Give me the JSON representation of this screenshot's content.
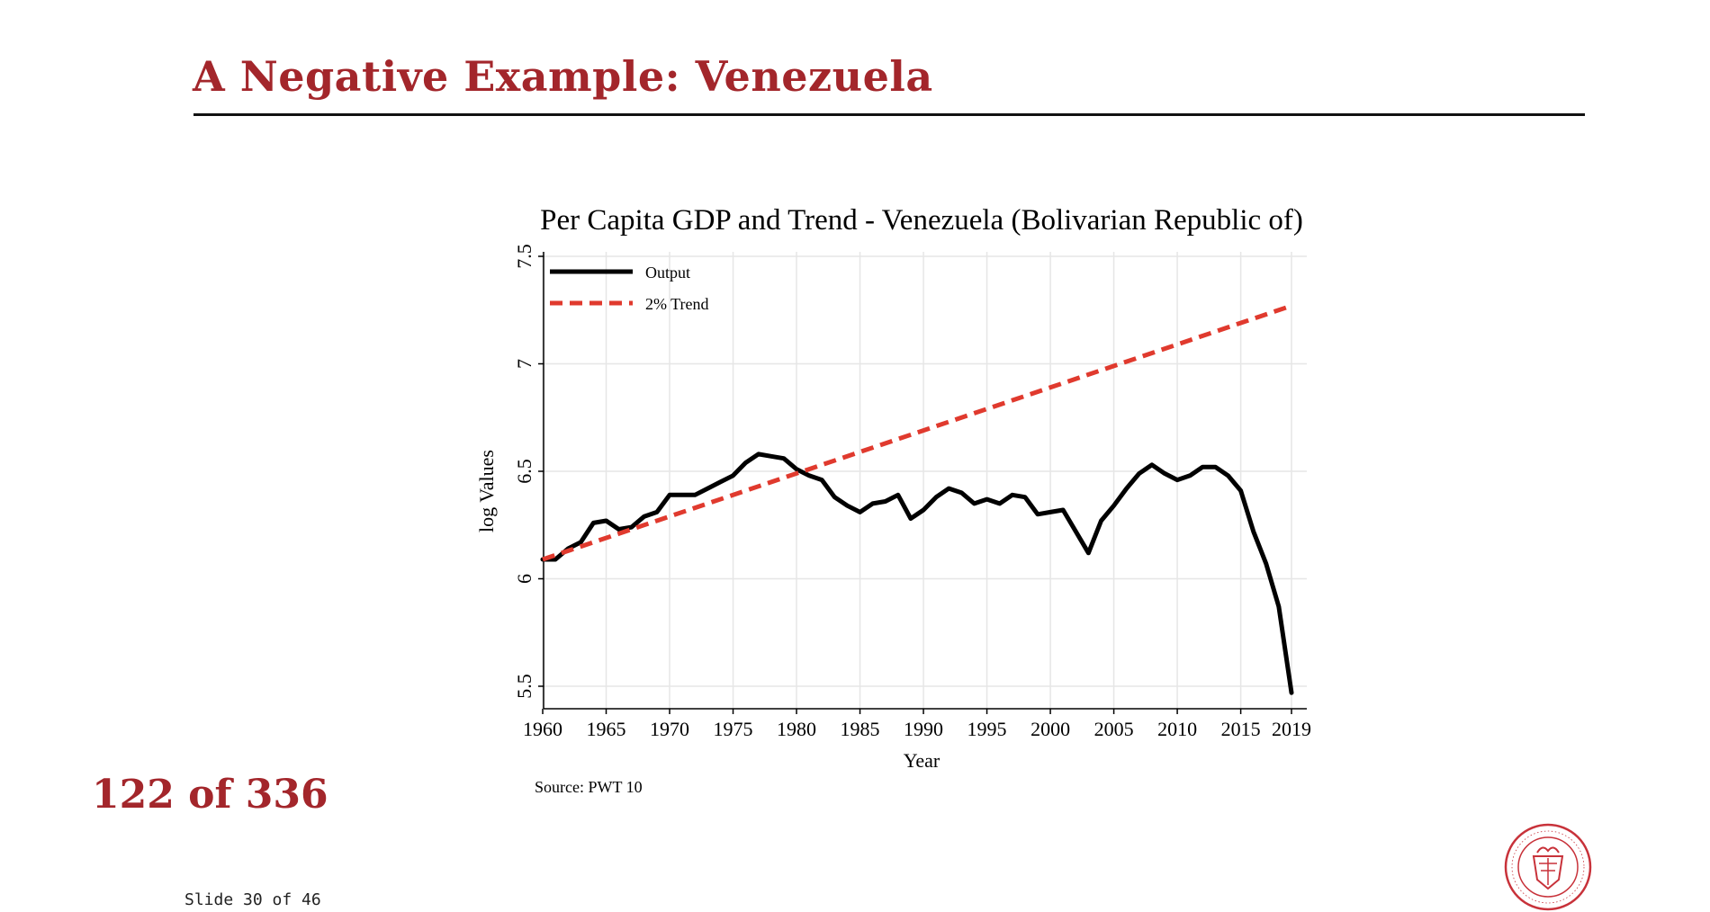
{
  "slide": {
    "title": "A Negative Example: Venezuela",
    "counter": "122 of 336",
    "slide_number": "Slide 30 of 46"
  },
  "colors": {
    "accent": "#a3262b",
    "output_line": "#000000",
    "trend_line": "#e03a2e",
    "grid": "#e6e6e6"
  },
  "chart_data": {
    "type": "line",
    "title": "Per Capita GDP and Trend - Venezuela (Bolivarian Republic of)",
    "xlabel": "Year",
    "ylabel": "log Values",
    "source": "Source: PWT 10",
    "xlim": [
      1960,
      2019
    ],
    "ylim": [
      5.45,
      7.5
    ],
    "xticks": [
      1960,
      1965,
      1970,
      1975,
      1980,
      1985,
      1990,
      1995,
      2000,
      2005,
      2010,
      2015,
      2019
    ],
    "yticks": [
      5.5,
      6,
      6.5,
      7,
      7.5
    ],
    "ytick_labels": [
      "5.5",
      "6",
      "6.5",
      "7",
      "7.5"
    ],
    "grid": true,
    "legend_position": "top-left",
    "x": [
      1960,
      1961,
      1962,
      1963,
      1964,
      1965,
      1966,
      1967,
      1968,
      1969,
      1970,
      1971,
      1972,
      1973,
      1974,
      1975,
      1976,
      1977,
      1978,
      1979,
      1980,
      1981,
      1982,
      1983,
      1984,
      1985,
      1986,
      1987,
      1988,
      1989,
      1990,
      1991,
      1992,
      1993,
      1994,
      1995,
      1996,
      1997,
      1998,
      1999,
      2000,
      2001,
      2002,
      2003,
      2004,
      2005,
      2006,
      2007,
      2008,
      2009,
      2010,
      2011,
      2012,
      2013,
      2014,
      2015,
      2016,
      2017,
      2018,
      2019
    ],
    "series": [
      {
        "name": "Output",
        "style": "solid",
        "values": [
          6.09,
          6.09,
          6.14,
          6.17,
          6.26,
          6.27,
          6.23,
          6.24,
          6.29,
          6.31,
          6.39,
          6.39,
          6.39,
          6.42,
          6.45,
          6.48,
          6.54,
          6.58,
          6.57,
          6.56,
          6.51,
          6.48,
          6.46,
          6.38,
          6.34,
          6.31,
          6.35,
          6.36,
          6.39,
          6.28,
          6.32,
          6.38,
          6.42,
          6.4,
          6.35,
          6.37,
          6.35,
          6.39,
          6.38,
          6.3,
          6.31,
          6.32,
          6.22,
          6.12,
          6.27,
          6.34,
          6.42,
          6.49,
          6.53,
          6.49,
          6.46,
          6.48,
          6.52,
          6.52,
          6.48,
          6.41,
          6.22,
          6.07,
          5.87,
          5.47
        ]
      },
      {
        "name": "2% Trend",
        "style": "dashed",
        "start": 6.09,
        "end": 7.27
      }
    ]
  }
}
